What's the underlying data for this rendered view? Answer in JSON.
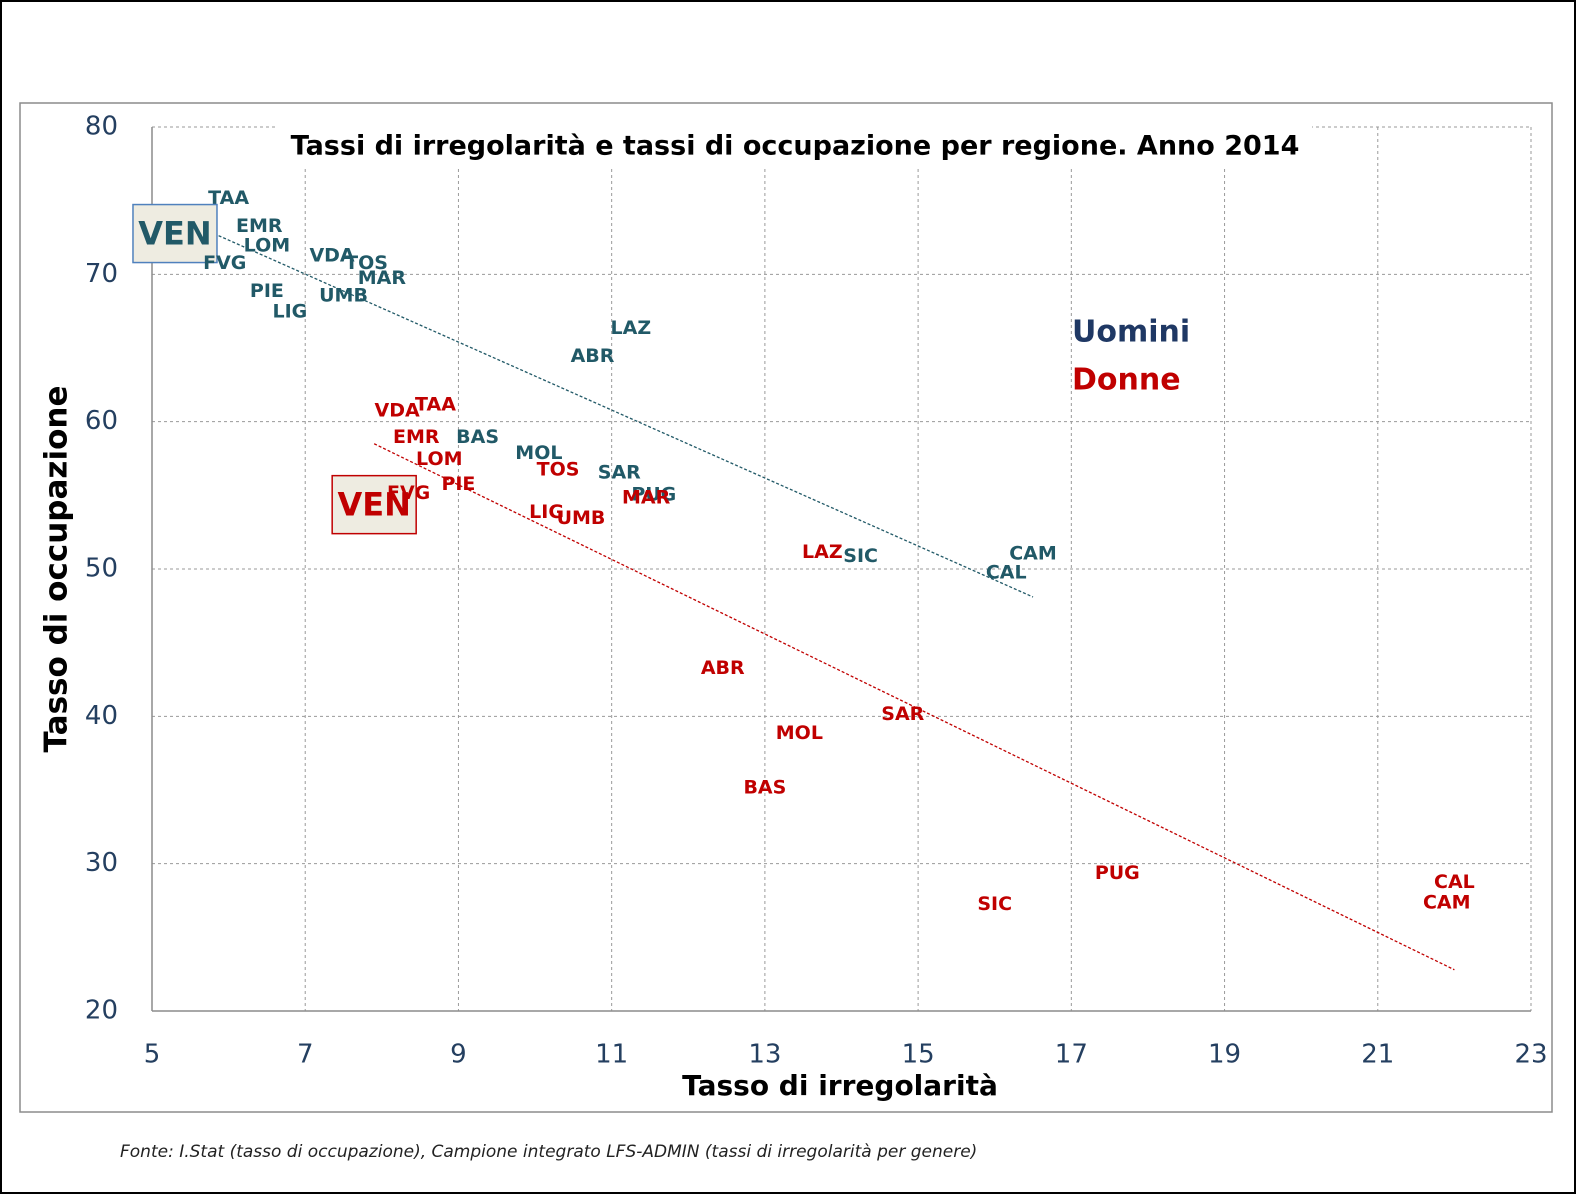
{
  "chart_data": {
    "type": "scatter",
    "title": "Tassi di irregolarità e tassi di occupazione per regione. Anno 2014",
    "x_label": "Tasso di irregolarità",
    "y_label": "Tasso di occupazione",
    "note": "Fonte: I.Stat (tasso di occupazione), Campione integrato LFS-ADMIN (tassi di irregolarità per genere)",
    "xlim": [
      5,
      23
    ],
    "xticks": [
      5,
      7,
      9,
      11,
      13,
      15,
      17,
      19,
      21,
      23
    ],
    "ylim": [
      20,
      80
    ],
    "yticks": [
      20,
      30,
      40,
      50,
      60,
      70,
      80
    ],
    "grid": true,
    "legend": "right",
    "series": [
      {
        "name": "Uomini",
        "color": "#215967",
        "highlight": 3,
        "labels": [
          "TAA",
          "EMR",
          "LOM",
          "VEN",
          "FVG",
          "VDA",
          "TOS",
          "MAR",
          "PIE",
          "UMB",
          "LIG",
          "LAZ",
          "ABR",
          "BAS",
          "MOL",
          "SAR",
          "PUG",
          "SIC",
          "CAM",
          "CAL"
        ],
        "x": [
          6.0,
          6.4,
          6.5,
          5.3,
          5.95,
          7.35,
          7.8,
          8.0,
          6.5,
          7.5,
          6.8,
          11.25,
          10.75,
          9.25,
          10.05,
          11.1,
          11.55,
          14.25,
          16.5,
          16.15
        ],
        "values": [
          75.2,
          73.3,
          72.0,
          72.7,
          70.8,
          71.3,
          70.8,
          69.8,
          68.9,
          68.6,
          67.5,
          66.4,
          64.5,
          59.0,
          57.9,
          56.6,
          55.1,
          50.9,
          51.1,
          49.8
        ],
        "trendline": {
          "x": [
            5.75,
            16.5
          ],
          "values": [
            72.9,
            48.1
          ]
        }
      },
      {
        "name": "Donne",
        "color": "#c00000",
        "highlight": 4,
        "labels": [
          "VDA",
          "TAA",
          "EMR",
          "LOM",
          "VEN",
          "FVG",
          "PIE",
          "TOS",
          "MAR",
          "LIG",
          "UMB",
          "LAZ",
          "ABR",
          "SAR",
          "MOL",
          "BAS",
          "PUG",
          "SIC",
          "CAL",
          "CAM"
        ],
        "x": [
          8.2,
          8.7,
          8.45,
          8.75,
          7.9,
          8.35,
          9.0,
          10.3,
          11.45,
          10.15,
          10.6,
          13.75,
          12.45,
          14.8,
          13.45,
          13.0,
          17.6,
          16.0,
          22.0,
          21.9
        ],
        "values": [
          60.8,
          61.2,
          59.0,
          57.5,
          54.3,
          55.2,
          55.8,
          56.8,
          54.9,
          53.9,
          53.5,
          51.2,
          43.3,
          40.2,
          38.9,
          35.2,
          29.4,
          27.3,
          28.8,
          27.4
        ],
        "trendline": {
          "x": [
            7.9,
            22.0
          ],
          "values": [
            58.5,
            22.8
          ]
        }
      }
    ]
  }
}
